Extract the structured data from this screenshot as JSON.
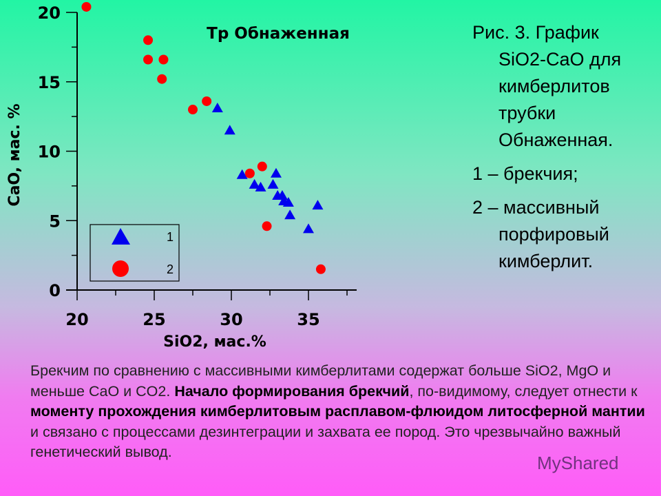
{
  "chart_data": {
    "type": "scatter",
    "title": "Тр Обнаженная",
    "xlabel": "SiO2, мас.%",
    "ylabel": "CaO, мас. %",
    "xlim": [
      20,
      38.5
    ],
    "ylim": [
      0,
      20
    ],
    "x_ticks": [
      20,
      25,
      30,
      35
    ],
    "y_ticks": [
      0,
      5,
      10,
      15,
      20
    ],
    "grid": false,
    "legend_placement": "bottom-left",
    "series": [
      {
        "name": "1",
        "marker": "triangle",
        "color": "#0000ee",
        "x": [
          29.1,
          29.9,
          30.7,
          32.9,
          31.5,
          31.9,
          32.7,
          33.0,
          33.3,
          33.4,
          33.7,
          33.8,
          35.0,
          35.6
        ],
        "y": [
          13.1,
          11.5,
          8.3,
          8.4,
          7.6,
          7.4,
          7.6,
          6.8,
          6.8,
          6.4,
          6.3,
          5.4,
          4.4,
          6.1
        ]
      },
      {
        "name": "2",
        "marker": "circle",
        "color": "#ff0000",
        "x": [
          20.6,
          24.6,
          24.6,
          25.6,
          25.5,
          27.5,
          28.4,
          31.2,
          32.0,
          32.3,
          35.8
        ],
        "y": [
          20.4,
          18.0,
          16.6,
          16.6,
          15.2,
          13.0,
          13.6,
          8.4,
          8.9,
          4.6,
          1.5
        ]
      }
    ]
  },
  "caption": {
    "line1": "Рис. 3. График",
    "line2": "SiO2-CaO для",
    "line3": "кимберлитов",
    "line4": "трубки",
    "line5": "Обнаженная.",
    "item1": "1 – брекчия;",
    "item2a": "2 – массивный",
    "item2b": "порфировый",
    "item2c": "кимберлит."
  },
  "body": {
    "t1": "Брекчим по сравнению с массивными кимберлитами содержат больше SiO2, MgO и меньше CaO и CO2. ",
    "b1": "Начало формирования брекчий",
    "t2": ", по-видимому, следует отнести к ",
    "b2": "моменту прохождения кимберлитовым расплавом-флюидом литосферной мантии",
    "t3": " и связано с процессами дезинтеграции и захвата ее пород. Это чрезвычайно важный генетический вывод."
  },
  "watermark": "MyShared"
}
